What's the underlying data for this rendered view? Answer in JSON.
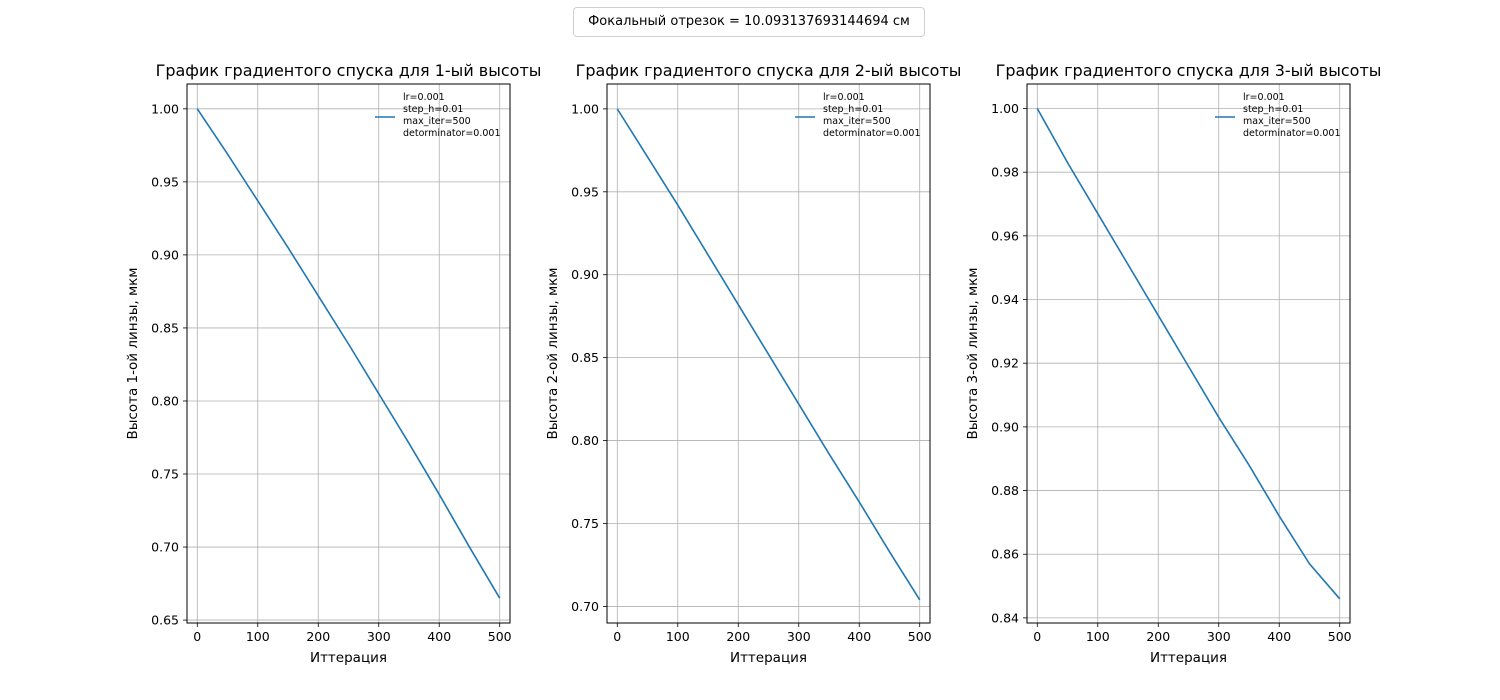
{
  "figure": {
    "suptitle": "Фокальный отрезок = 10.093137693144694 см"
  },
  "chart_data": [
    {
      "type": "line",
      "title": "График градиентого спуска для 1-ый высоты",
      "xlabel": "Иттерация",
      "ylabel": "Высота 1-ой линзы, мкм",
      "xlim": [
        -17,
        517
      ],
      "ylim": [
        0.648,
        1.017
      ],
      "xticks": [
        0,
        100,
        200,
        300,
        400,
        500
      ],
      "yticks": [
        0.65,
        0.7,
        0.75,
        0.8,
        0.85,
        0.9,
        0.95,
        1.0
      ],
      "ytick_labels": [
        "0.65",
        "0.70",
        "0.75",
        "0.80",
        "0.85",
        "0.90",
        "0.95",
        "1.00"
      ],
      "grid": true,
      "legend_placement": "upper-right",
      "color": "#1f77b4",
      "series": [
        {
          "legend_lines": [
            "lr=0.001",
            "step_h=0.01",
            "max_iter=500",
            "detorminator=0.001"
          ],
          "x": [
            0,
            50,
            100,
            150,
            200,
            250,
            300,
            350,
            400,
            450,
            500
          ],
          "y": [
            1.0,
            0.969,
            0.937,
            0.905,
            0.872,
            0.839,
            0.805,
            0.771,
            0.736,
            0.7,
            0.665
          ]
        }
      ]
    },
    {
      "type": "line",
      "title": "График градиентого спуска для 2-ый высоты",
      "xlabel": "Иттерация",
      "ylabel": "Высота 2-ой линзы, мкм",
      "xlim": [
        -17,
        517
      ],
      "ylim": [
        0.69,
        1.015
      ],
      "xticks": [
        0,
        100,
        200,
        300,
        400,
        500
      ],
      "yticks": [
        0.7,
        0.75,
        0.8,
        0.85,
        0.9,
        0.95,
        1.0
      ],
      "ytick_labels": [
        "0.70",
        "0.75",
        "0.80",
        "0.85",
        "0.90",
        "0.95",
        "1.00"
      ],
      "grid": true,
      "legend_placement": "upper-right",
      "color": "#1f77b4",
      "series": [
        {
          "legend_lines": [
            "lr=0.001",
            "step_h=0.01",
            "max_iter=500",
            "detorminator=0.001"
          ],
          "x": [
            0,
            50,
            100,
            150,
            200,
            250,
            300,
            350,
            400,
            450,
            500
          ],
          "y": [
            1.0,
            0.971,
            0.942,
            0.912,
            0.882,
            0.852,
            0.822,
            0.792,
            0.763,
            0.733,
            0.704
          ]
        }
      ]
    },
    {
      "type": "line",
      "title": "График градиентого спуска для 3-ый высоты",
      "xlabel": "Иттерация",
      "ylabel": "Высота 3-ой линзы, мкм",
      "xlim": [
        -17,
        517
      ],
      "ylim": [
        0.8384,
        1.0077
      ],
      "xticks": [
        0,
        100,
        200,
        300,
        400,
        500
      ],
      "yticks": [
        0.84,
        0.86,
        0.88,
        0.9,
        0.92,
        0.94,
        0.96,
        0.98,
        1.0
      ],
      "ytick_labels": [
        "0.84",
        "0.86",
        "0.88",
        "0.90",
        "0.92",
        "0.94",
        "0.96",
        "0.98",
        "1.00"
      ],
      "grid": true,
      "legend_placement": "upper-right",
      "color": "#1f77b4",
      "series": [
        {
          "legend_lines": [
            "lr=0.001",
            "step_h=0.01",
            "max_iter=500",
            "detorminator=0.001"
          ],
          "x": [
            0,
            50,
            100,
            150,
            200,
            250,
            300,
            350,
            400,
            450,
            500
          ],
          "y": [
            1.0,
            0.983,
            0.967,
            0.951,
            0.935,
            0.919,
            0.903,
            0.888,
            0.872,
            0.857,
            0.846
          ]
        }
      ]
    }
  ]
}
